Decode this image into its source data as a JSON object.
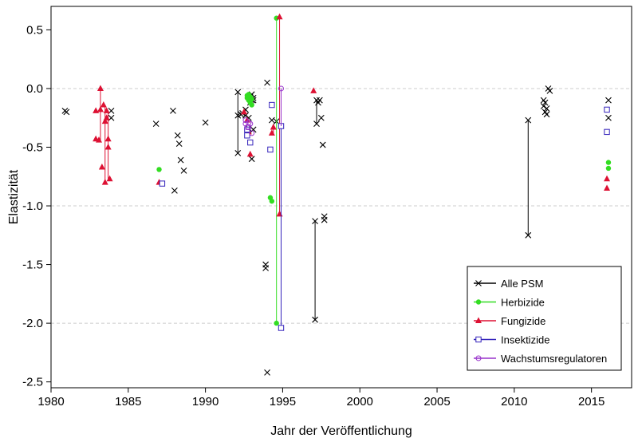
{
  "chart_data": {
    "type": "scatter",
    "title": "",
    "xlabel": "Jahr der Veröffentlichung",
    "ylabel": "Elastizität",
    "xlim": [
      1980,
      2017.6
    ],
    "ylim": [
      -2.55,
      0.7
    ],
    "xticks": [
      1980,
      1985,
      1990,
      1995,
      2000,
      2005,
      2010,
      2015
    ],
    "yticks": [
      0.5,
      0.0,
      -0.5,
      -1.0,
      -1.5,
      -2.0,
      -2.5
    ],
    "ytick_labels": [
      "0.5",
      "0.0",
      "-0.5",
      "-1.0",
      "-1.5",
      "-2.0",
      "-2.5"
    ],
    "gridlines_y": [
      0.0,
      -1.0,
      -2.0
    ],
    "legend_position": "bottom-right",
    "series": [
      {
        "name": "Alle PSM",
        "marker": "x",
        "color": "#000000",
        "points": [
          [
            1980.9,
            -0.19
          ],
          [
            1981.0,
            -0.2
          ],
          [
            1983.9,
            -0.19
          ],
          [
            1983.9,
            -0.25
          ],
          [
            1986.8,
            -0.3
          ],
          [
            1987.9,
            -0.19
          ],
          [
            1988.0,
            -0.87
          ],
          [
            1988.2,
            -0.4
          ],
          [
            1988.3,
            -0.47
          ],
          [
            1988.4,
            -0.61
          ],
          [
            1988.6,
            -0.7
          ],
          [
            1990.0,
            -0.29
          ],
          [
            1992.1,
            -0.03
          ],
          [
            1992.1,
            -0.23
          ],
          [
            1992.1,
            -0.55
          ],
          [
            1992.3,
            -0.22
          ],
          [
            1992.4,
            -0.21
          ],
          [
            1992.6,
            -0.18
          ],
          [
            1992.6,
            -0.23
          ],
          [
            1992.8,
            -0.25
          ],
          [
            1992.8,
            -0.34
          ],
          [
            1992.9,
            -0.07
          ],
          [
            1992.9,
            -0.12
          ],
          [
            1993.0,
            -0.05
          ],
          [
            1993.0,
            -0.1
          ],
          [
            1993.0,
            -0.6
          ],
          [
            1993.1,
            -0.08
          ],
          [
            1993.1,
            -0.1
          ],
          [
            1993.1,
            -0.35
          ],
          [
            1993.9,
            -1.5
          ],
          [
            1993.9,
            -1.53
          ],
          [
            1994.0,
            0.05
          ],
          [
            1994.0,
            -2.42
          ],
          [
            1994.3,
            -0.27
          ],
          [
            1994.6,
            -0.28
          ],
          [
            1997.1,
            -1.13
          ],
          [
            1997.1,
            -1.97
          ],
          [
            1997.2,
            -0.1
          ],
          [
            1997.2,
            -0.3
          ],
          [
            1997.3,
            -0.12
          ],
          [
            1997.4,
            -0.1
          ],
          [
            1997.5,
            -0.25
          ],
          [
            1997.6,
            -0.48
          ],
          [
            1997.7,
            -1.09
          ],
          [
            1997.7,
            -1.12
          ],
          [
            2010.9,
            -0.27
          ],
          [
            2010.9,
            -1.25
          ],
          [
            2011.9,
            -0.1
          ],
          [
            2011.9,
            -0.15
          ],
          [
            2012.0,
            -0.12
          ],
          [
            2012.0,
            -0.2
          ],
          [
            2012.1,
            -0.22
          ],
          [
            2012.1,
            -0.17
          ],
          [
            2012.2,
            -0.0
          ],
          [
            2012.3,
            -0.02
          ],
          [
            2016.1,
            -0.1
          ],
          [
            2016.1,
            -0.25
          ]
        ],
        "lines": [
          [
            [
              1992.1,
              -0.23
            ],
            [
              1992.1,
              -0.55
            ]
          ],
          [
            [
              1992.1,
              -0.03
            ],
            [
              1992.1,
              -0.23
            ]
          ],
          [
            [
              1997.1,
              -1.13
            ],
            [
              1997.1,
              -1.97
            ]
          ],
          [
            [
              1997.2,
              -0.1
            ],
            [
              1997.2,
              -0.3
            ]
          ],
          [
            [
              2010.9,
              -0.27
            ],
            [
              2010.9,
              -1.25
            ]
          ]
        ]
      },
      {
        "name": "Herbizide",
        "marker": "circle",
        "color": "#33dd22",
        "points": [
          [
            1987.0,
            -0.69
          ],
          [
            1992.7,
            -0.06
          ],
          [
            1992.7,
            -0.08
          ],
          [
            1992.8,
            -0.05
          ],
          [
            1992.8,
            -0.1
          ],
          [
            1992.9,
            -0.07
          ],
          [
            1992.9,
            -0.12
          ],
          [
            1993.0,
            -0.09
          ],
          [
            1993.0,
            -0.14
          ],
          [
            1994.2,
            -0.93
          ],
          [
            1994.3,
            -0.96
          ],
          [
            1994.6,
            0.6
          ],
          [
            1994.6,
            -2.0
          ],
          [
            2016.1,
            -0.63
          ],
          [
            2016.1,
            -0.68
          ]
        ],
        "lines": [
          [
            [
              1994.6,
              0.6
            ],
            [
              1994.6,
              -2.0
            ]
          ]
        ]
      },
      {
        "name": "Fungizide",
        "marker": "triangle",
        "color": "#dd1133",
        "points": [
          [
            1982.9,
            -0.19
          ],
          [
            1982.9,
            -0.43
          ],
          [
            1983.1,
            -0.44
          ],
          [
            1983.2,
            -0.0
          ],
          [
            1983.2,
            -0.18
          ],
          [
            1983.3,
            -0.67
          ],
          [
            1983.4,
            -0.14
          ],
          [
            1983.5,
            -0.28
          ],
          [
            1983.5,
            -0.8
          ],
          [
            1983.6,
            -0.25
          ],
          [
            1983.6,
            -0.19
          ],
          [
            1983.7,
            -0.43
          ],
          [
            1983.7,
            -0.5
          ],
          [
            1983.8,
            -0.77
          ],
          [
            1987.0,
            -0.8
          ],
          [
            1992.5,
            -0.2
          ],
          [
            1992.7,
            -0.27
          ],
          [
            1992.8,
            -0.37
          ],
          [
            1992.9,
            -0.56
          ],
          [
            1994.3,
            -0.38
          ],
          [
            1994.4,
            -0.33
          ],
          [
            1994.8,
            0.61
          ],
          [
            1994.8,
            -1.07
          ],
          [
            1997.0,
            -0.02
          ],
          [
            2016.0,
            -0.77
          ],
          [
            2016.0,
            -0.85
          ]
        ],
        "lines": [
          [
            [
              1983.2,
              -0.0
            ],
            [
              1983.2,
              -0.44
            ]
          ],
          [
            [
              1983.5,
              -0.14
            ],
            [
              1983.5,
              -0.8
            ]
          ],
          [
            [
              1983.7,
              -0.19
            ],
            [
              1983.7,
              -0.77
            ]
          ],
          [
            [
              1994.8,
              0.61
            ],
            [
              1994.8,
              -1.07
            ]
          ],
          [
            [
              1994.4,
              -0.33
            ],
            [
              1994.4,
              -0.38
            ]
          ]
        ]
      },
      {
        "name": "Insektizide",
        "marker": "square",
        "color": "#3322bb",
        "points": [
          [
            1987.2,
            -0.81
          ],
          [
            1992.7,
            -0.35
          ],
          [
            1992.7,
            -0.4
          ],
          [
            1992.9,
            -0.46
          ],
          [
            1994.2,
            -0.52
          ],
          [
            1994.3,
            -0.14
          ],
          [
            1994.9,
            -0.32
          ],
          [
            1994.9,
            -2.04
          ],
          [
            2016.0,
            -0.18
          ],
          [
            2016.0,
            -0.37
          ]
        ],
        "lines": [
          [
            [
              1994.9,
              -0.32
            ],
            [
              1994.9,
              -2.04
            ]
          ]
        ]
      },
      {
        "name": "Wachstumsregulatoren",
        "marker": "circle-open",
        "color": "#9933cc",
        "points": [
          [
            1992.6,
            -0.27
          ],
          [
            1992.6,
            -0.3
          ],
          [
            1992.7,
            -0.33
          ],
          [
            1992.8,
            -0.29
          ],
          [
            1992.8,
            -0.33
          ],
          [
            1992.9,
            -0.3
          ],
          [
            1993.0,
            -0.38
          ],
          [
            1994.9,
            0.0
          ]
        ],
        "lines": [
          [
            [
              1994.9,
              0.0
            ],
            [
              1994.9,
              -0.32
            ]
          ]
        ]
      }
    ]
  }
}
